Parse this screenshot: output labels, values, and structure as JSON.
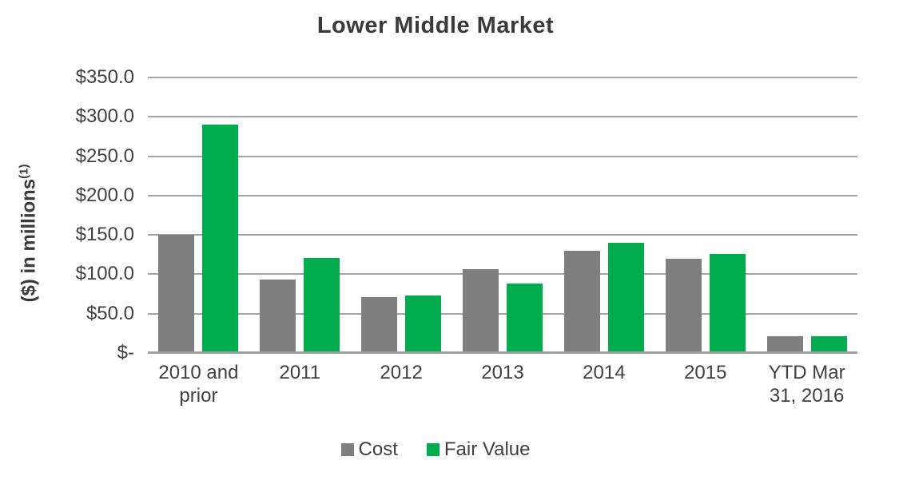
{
  "chart": {
    "title": "Lower Middle Market",
    "y_axis_label": "($) in millions",
    "y_axis_label_superscript": "(1)"
  },
  "chart_data": {
    "type": "bar",
    "title": "Lower Middle Market",
    "ylabel": "($) in millions(1)",
    "xlabel": "",
    "categories": [
      "2010 and prior",
      "2011",
      "2012",
      "2013",
      "2014",
      "2015",
      "YTD Mar 31, 2016"
    ],
    "series": [
      {
        "name": "Cost",
        "color": "#7F7F7F",
        "values": [
          150,
          93,
          71,
          107,
          130,
          120,
          21
        ]
      },
      {
        "name": "Fair Value",
        "color": "#00AC4E",
        "values": [
          290,
          121,
          73,
          88,
          140,
          126,
          21
        ]
      }
    ],
    "ylim": [
      0,
      350
    ],
    "y_tick_interval": 50,
    "y_tick_labels": [
      "$-",
      "$50.0",
      "$100.0",
      "$150.0",
      "$200.0",
      "$250.0",
      "$300.0",
      "$350.0"
    ],
    "grid": true,
    "legend_position": "bottom",
    "colors": {
      "grid": "#A3A3A3",
      "axis": "#A0A0A0",
      "text": "#404040",
      "title_text": "#3A3A3A"
    }
  }
}
